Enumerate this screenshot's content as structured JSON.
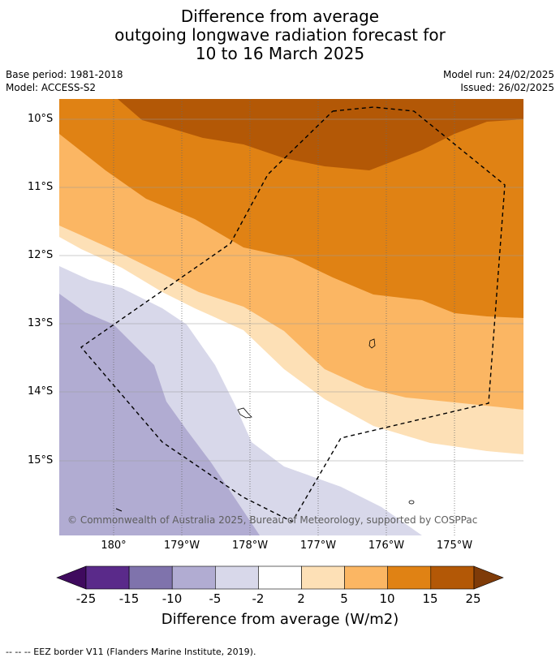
{
  "title": {
    "line1": "Difference from average",
    "line2": "outgoing longwave radiation forecast for",
    "line3": "10 to 16 March 2025"
  },
  "meta": {
    "base_period": "Base period: 1981-2018",
    "model": "Model: ACCESS-S2",
    "model_run": "Model run: 24/02/2025",
    "issued": "Issued: 26/02/2025"
  },
  "map": {
    "lat_labels": [
      "10°S",
      "11°S",
      "12°S",
      "13°S",
      "14°S",
      "15°S"
    ],
    "lon_labels": [
      "180°",
      "179°W",
      "178°W",
      "177°W",
      "176°W",
      "175°W"
    ],
    "copyright": "© Commonwealth of Australia 2025, Bureau of Meteorology, supported by COSPPac"
  },
  "colorbar": {
    "ticks": [
      "-25",
      "-15",
      "-10",
      "-5",
      "-2",
      "2",
      "5",
      "10",
      "15",
      "25"
    ],
    "colors": {
      "lt-25": "#3f0a5e",
      "-25to-15": "#5a2a8a",
      "-15to-10": "#7f73ac",
      "-10to-5": "#b1acd2",
      "-5to-2": "#d8d8ea",
      "-2to2": "#ffffff",
      "2to5": "#fde0b6",
      "5to10": "#fbb663",
      "10to15": "#e08214",
      "15to25": "#b35806",
      "gt25": "#7f3b08"
    },
    "label": "Difference from average (W/m2)"
  },
  "footer": "--  --  -- EEZ border V11 (Flanders Marine Institute, 2019)."
}
